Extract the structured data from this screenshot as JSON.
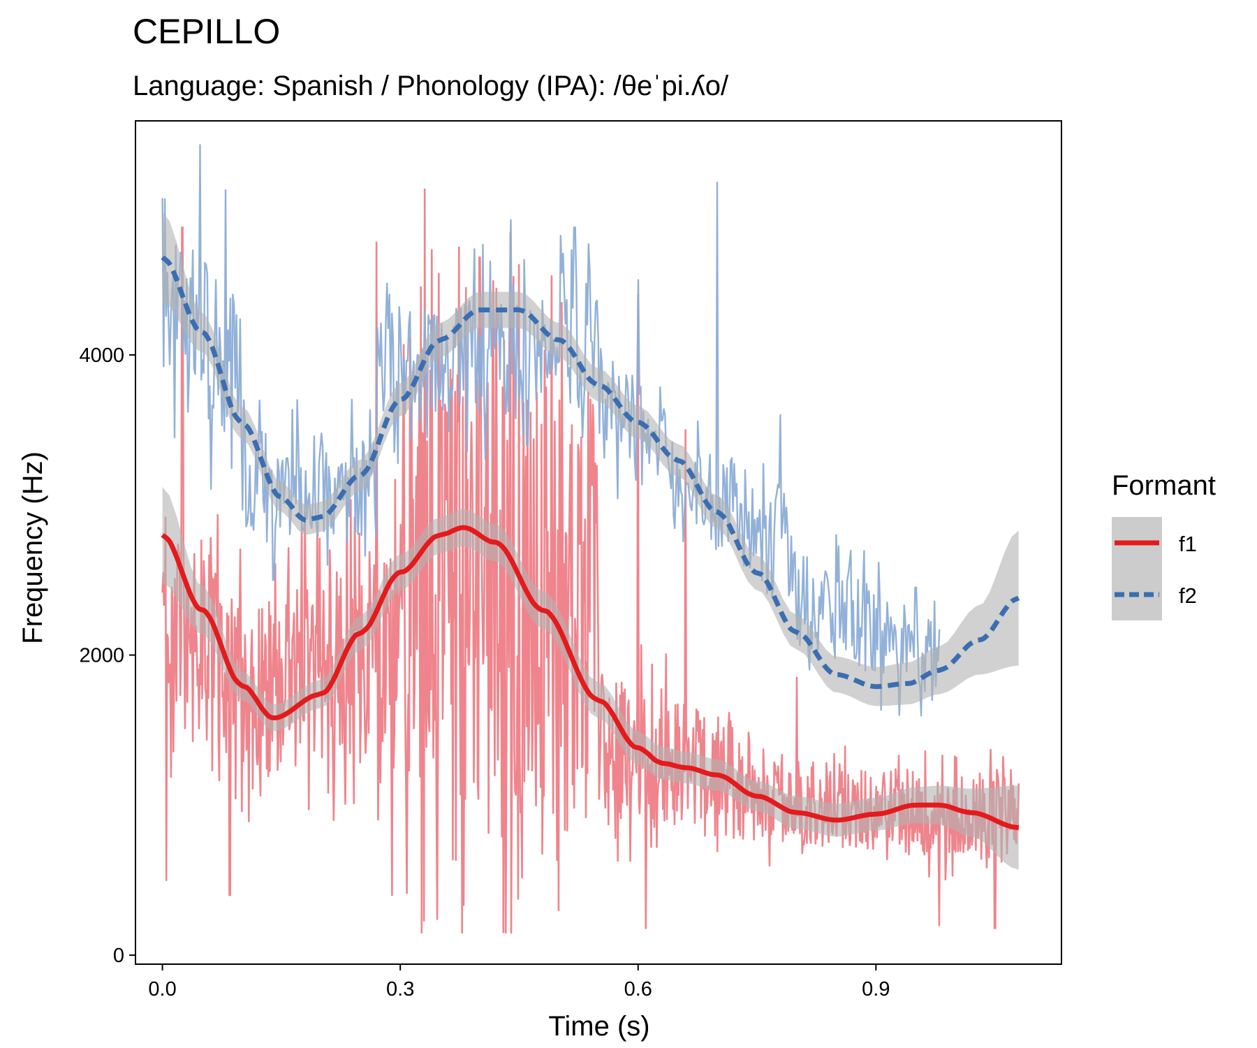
{
  "chart_data": {
    "type": "line",
    "title": "CEPILLO",
    "subtitle": "Language: Spanish / Phonology (IPA): /θeˈpi.ʎo/",
    "xlabel": "Time (s)",
    "ylabel": "Frequency (Hz)",
    "xlim": [
      -0.034,
      1.134
    ],
    "ylim": [
      -60,
      5560
    ],
    "xticks": [
      0.0,
      0.3,
      0.6,
      0.9
    ],
    "xtick_labels": [
      "0.0",
      "0.3",
      "0.6",
      "0.9"
    ],
    "yticks": [
      0,
      2000,
      4000
    ],
    "ytick_labels": [
      "0",
      "2000",
      "4000"
    ],
    "grid": false,
    "legend": {
      "title": "Formant",
      "placement": "right"
    },
    "colors": {
      "f1": "#e41a1c",
      "f1_raw": "#ee7d86",
      "f2": "#3a6eb0",
      "f2_raw": "#8cadd6",
      "band": "#b3b3b3"
    },
    "series": [
      {
        "name": "f1",
        "linestyle": "solid",
        "smooth_x": [
          0.0,
          0.05,
          0.1,
          0.14,
          0.2,
          0.25,
          0.3,
          0.35,
          0.38,
          0.42,
          0.48,
          0.55,
          0.6,
          0.63,
          0.66,
          0.7,
          0.75,
          0.8,
          0.85,
          0.9,
          0.95,
          0.98,
          1.02,
          1.08
        ],
        "smooth_y": [
          2800,
          2300,
          1800,
          1580,
          1740,
          2150,
          2550,
          2800,
          2850,
          2750,
          2300,
          1700,
          1380,
          1280,
          1250,
          1200,
          1060,
          950,
          900,
          940,
          1000,
          1000,
          950,
          850
        ],
        "band_half_width": [
          320,
          160,
          95,
          90,
          95,
          115,
          120,
          120,
          125,
          125,
          125,
          120,
          110,
          110,
          105,
          105,
          100,
          110,
          110,
          110,
          120,
          130,
          160,
          280
        ],
        "raw_segments": [
          {
            "x0": 0.0,
            "x1": 0.1,
            "center": [
              2300,
              1800
            ],
            "spread": [
              800,
              700
            ],
            "peaks": [
              [
                0.025,
                4850
              ],
              [
                0.005,
                500
              ],
              [
                0.085,
                400
              ]
            ]
          },
          {
            "x0": 0.1,
            "x1": 0.3,
            "center": [
              1700,
              2100
            ],
            "spread": [
              700,
              900
            ],
            "peaks": [
              [
                0.27,
                4750
              ],
              [
                0.18,
                2950
              ],
              [
                0.29,
                400
              ]
            ]
          },
          {
            "x0": 0.3,
            "x1": 0.55,
            "center": [
              2600,
              2200
            ],
            "spread": [
              1900,
              1900
            ],
            "peaks": [
              [
                0.34,
                4700
              ],
              [
                0.4,
                4650
              ],
              [
                0.45,
                4600
              ],
              [
                0.33,
                230
              ],
              [
                0.5,
                300
              ]
            ]
          },
          {
            "x0": 0.55,
            "x1": 0.72,
            "center": [
              1400,
              1200
            ],
            "spread": [
              600,
              450
            ],
            "peaks": [
              [
                0.6,
                4400
              ],
              [
                0.66,
                3500
              ],
              [
                0.61,
                180
              ]
            ]
          },
          {
            "x0": 0.72,
            "x1": 1.08,
            "center": [
              1050,
              900
            ],
            "spread": [
              350,
              350
            ],
            "peaks": [
              [
                0.8,
                1850
              ],
              [
                0.98,
                200
              ],
              [
                1.05,
                180
              ]
            ]
          }
        ]
      },
      {
        "name": "f2",
        "linestyle": "dashed",
        "smooth_x": [
          0.0,
          0.05,
          0.1,
          0.15,
          0.18,
          0.2,
          0.25,
          0.3,
          0.35,
          0.4,
          0.45,
          0.5,
          0.55,
          0.6,
          0.65,
          0.7,
          0.75,
          0.8,
          0.85,
          0.9,
          0.94,
          0.98,
          1.03,
          1.08
        ],
        "smooth_y": [
          4650,
          4150,
          3550,
          3050,
          2900,
          2920,
          3200,
          3700,
          4100,
          4300,
          4300,
          4100,
          3800,
          3550,
          3300,
          2950,
          2550,
          2150,
          1870,
          1790,
          1810,
          1900,
          2100,
          2380
        ],
        "band_half_width": [
          300,
          130,
          110,
          100,
          100,
          100,
          105,
          110,
          115,
          120,
          120,
          115,
          110,
          110,
          110,
          110,
          115,
          115,
          120,
          130,
          140,
          160,
          230,
          450
        ],
        "raw_segments": [
          {
            "x0": 0.0,
            "x1": 0.1,
            "center": [
              4350,
              3800
            ],
            "spread": [
              700,
              700
            ],
            "peaks": [
              [
                0.048,
                5400
              ],
              [
                0.08,
                5100
              ],
              [
                0.015,
                3450
              ]
            ]
          },
          {
            "x0": 0.1,
            "x1": 0.27,
            "center": [
              3150,
              3100
            ],
            "spread": [
              450,
              450
            ],
            "peaks": [
              [
                0.17,
                3700
              ],
              [
                0.14,
                2500
              ]
            ]
          },
          {
            "x0": 0.27,
            "x1": 0.55,
            "center": [
              3900,
              4100
            ],
            "spread": [
              500,
              600
            ],
            "peaks": [
              [
                0.44,
                4900
              ],
              [
                0.52,
                4850
              ],
              [
                0.46,
                3400
              ]
            ]
          },
          {
            "x0": 0.55,
            "x1": 0.8,
            "center": [
              3700,
              2600
            ],
            "spread": [
              450,
              450
            ],
            "peaks": [
              [
                0.6,
                4500
              ],
              [
                0.7,
                5150
              ],
              [
                0.78,
                3600
              ]
            ]
          },
          {
            "x0": 0.8,
            "x1": 0.98,
            "center": [
              2400,
              1950
            ],
            "spread": [
              400,
              350
            ],
            "peaks": [
              [
                0.85,
                2800
              ],
              [
                0.95,
                2450
              ],
              [
                0.93,
                1600
              ]
            ]
          }
        ]
      }
    ]
  }
}
